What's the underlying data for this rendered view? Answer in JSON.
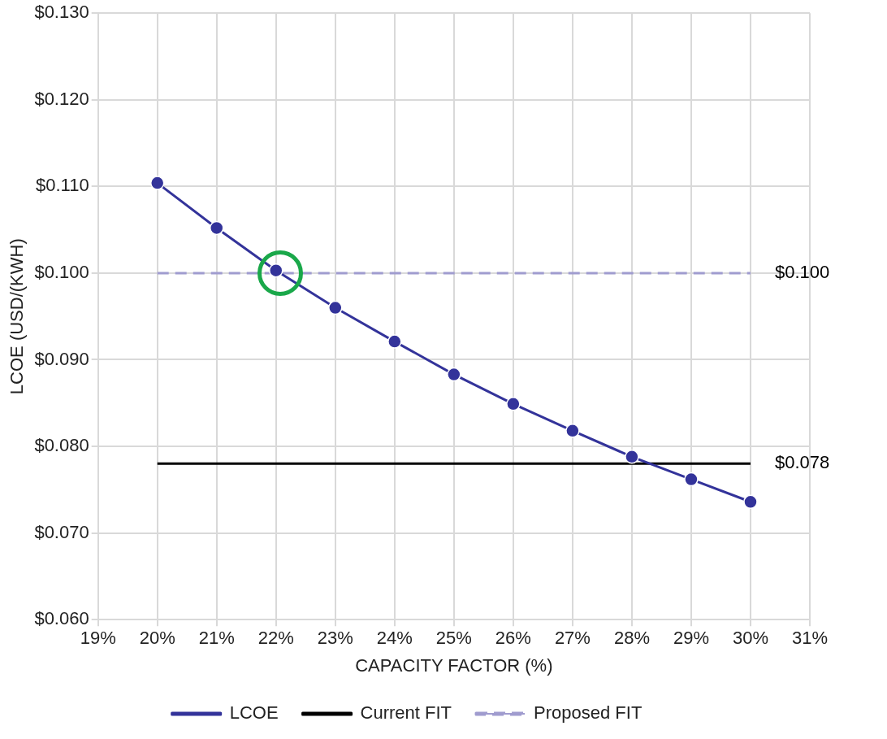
{
  "chart_data": {
    "type": "line",
    "xlabel": "CAPACITY FACTOR (%)",
    "ylabel": "LCOE (USD/(KWH)",
    "x": [
      20,
      21,
      22,
      23,
      24,
      25,
      26,
      27,
      28,
      29,
      30
    ],
    "series": [
      {
        "name": "LCOE",
        "color": "#33339a",
        "marker": "circle",
        "line_style": "solid",
        "values": [
          0.1104,
          0.1052,
          0.1003,
          0.096,
          0.0921,
          0.0883,
          0.0849,
          0.0818,
          0.0788,
          0.0762,
          0.0736
        ]
      },
      {
        "name": "Current FIT",
        "color": "#000000",
        "marker": "none",
        "line_style": "solid",
        "values": [
          0.078,
          0.078,
          0.078,
          0.078,
          0.078,
          0.078,
          0.078,
          0.078,
          0.078,
          0.078,
          0.078
        ],
        "value_labels": [
          null,
          null,
          null,
          null,
          null,
          null,
          null,
          null,
          null,
          null,
          "$0.078"
        ]
      },
      {
        "name": "Proposed FIT",
        "color": "#a09ccf",
        "marker": "none",
        "line_style": "dashed",
        "values": [
          0.1,
          0.1,
          0.1,
          0.1,
          0.1,
          0.1,
          0.1,
          0.1,
          0.1,
          0.1,
          0.1
        ],
        "value_labels": [
          null,
          null,
          null,
          null,
          null,
          null,
          null,
          null,
          null,
          null,
          "$0.100"
        ]
      }
    ],
    "xlim": [
      19,
      31
    ],
    "xticks": [
      {
        "value": 19,
        "label": "19%"
      },
      {
        "value": 20,
        "label": "20%"
      },
      {
        "value": 21,
        "label": "21%"
      },
      {
        "value": 22,
        "label": "22%"
      },
      {
        "value": 23,
        "label": "23%"
      },
      {
        "value": 24,
        "label": "24%"
      },
      {
        "value": 25,
        "label": "25%"
      },
      {
        "value": 26,
        "label": "26%"
      },
      {
        "value": 27,
        "label": "27%"
      },
      {
        "value": 28,
        "label": "28%"
      },
      {
        "value": 29,
        "label": "29%"
      },
      {
        "value": 30,
        "label": "30%"
      },
      {
        "value": 31,
        "label": "31%"
      }
    ],
    "ylim": [
      0.06,
      0.13
    ],
    "yticks": [
      {
        "value": 0.06,
        "label": "$0.060"
      },
      {
        "value": 0.07,
        "label": "$0.070"
      },
      {
        "value": 0.08,
        "label": "$0.080"
      },
      {
        "value": 0.09,
        "label": "$0.090"
      },
      {
        "value": 0.1,
        "label": "$0.100"
      },
      {
        "value": 0.11,
        "label": "$0.110"
      },
      {
        "value": 0.12,
        "label": "$0.120"
      },
      {
        "value": 0.13,
        "label": "$0.130"
      }
    ],
    "grid": true,
    "legend": "bottom"
  }
}
